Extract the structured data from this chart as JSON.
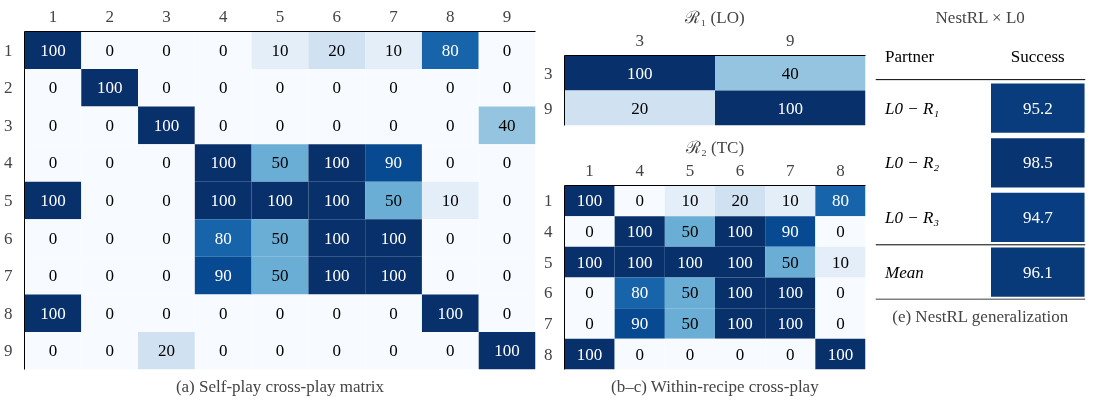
{
  "chart_data": [
    {
      "type": "heatmap",
      "categories": [
        "1",
        "2",
        "3",
        "4",
        "5",
        "6",
        "7",
        "8",
        "9"
      ],
      "y_categories": [
        "1",
        "2",
        "3",
        "4",
        "5",
        "6",
        "7",
        "8",
        "9"
      ],
      "data_labels": true,
      "grid": false,
      "annotations": [
        "(a) Self-play cross-play matrix"
      ],
      "cells": [
        [
          100,
          0,
          0,
          0,
          10,
          20,
          10,
          80,
          0
        ],
        [
          0,
          100,
          0,
          0,
          0,
          0,
          0,
          0,
          0
        ],
        [
          0,
          0,
          100,
          0,
          0,
          0,
          0,
          0,
          40
        ],
        [
          0,
          0,
          0,
          100,
          50,
          100,
          90,
          0,
          0
        ],
        [
          100,
          0,
          0,
          100,
          100,
          100,
          50,
          10,
          0
        ],
        [
          0,
          0,
          0,
          80,
          50,
          100,
          100,
          0,
          0
        ],
        [
          0,
          0,
          0,
          90,
          50,
          100,
          100,
          0,
          0
        ],
        [
          100,
          0,
          0,
          0,
          0,
          0,
          0,
          100,
          0
        ],
        [
          0,
          0,
          20,
          0,
          0,
          0,
          0,
          0,
          100
        ]
      ]
    },
    {
      "type": "heatmap",
      "title": "ℛ₁ (LO)",
      "categories": [
        "3",
        "9"
      ],
      "y_categories": [
        "3",
        "9"
      ],
      "data_labels": true,
      "grid": false,
      "cells": [
        [
          100,
          40
        ],
        [
          20,
          100
        ]
      ]
    },
    {
      "type": "heatmap",
      "title": "ℛ₂ (TC)",
      "categories": [
        "1",
        "4",
        "5",
        "6",
        "7",
        "8"
      ],
      "y_categories": [
        "1",
        "4",
        "5",
        "6",
        "7",
        "8"
      ],
      "data_labels": true,
      "grid": false,
      "annotations": [
        "(b–c) Within-recipe cross-play"
      ],
      "cells": [
        [
          100,
          0,
          10,
          20,
          10,
          80
        ],
        [
          0,
          100,
          50,
          100,
          90,
          0
        ],
        [
          100,
          100,
          100,
          100,
          50,
          10
        ],
        [
          0,
          80,
          50,
          100,
          100,
          0
        ],
        [
          0,
          90,
          50,
          100,
          100,
          0
        ],
        [
          100,
          0,
          0,
          0,
          0,
          100
        ]
      ]
    },
    {
      "type": "heatmap",
      "title": "NestRL × L0",
      "ylabel": "Partner",
      "categories": [
        "Success"
      ],
      "y_categories": [
        "L0 − R₁",
        "L0 − R₂",
        "L0 − R₃",
        "Mean"
      ],
      "data_labels": true,
      "grid": false,
      "annotations": [
        "(e) NestRL generalization"
      ],
      "cells": [
        [
          95.2
        ],
        [
          98.5
        ],
        [
          94.7
        ],
        [
          96.1
        ]
      ]
    }
  ]
}
